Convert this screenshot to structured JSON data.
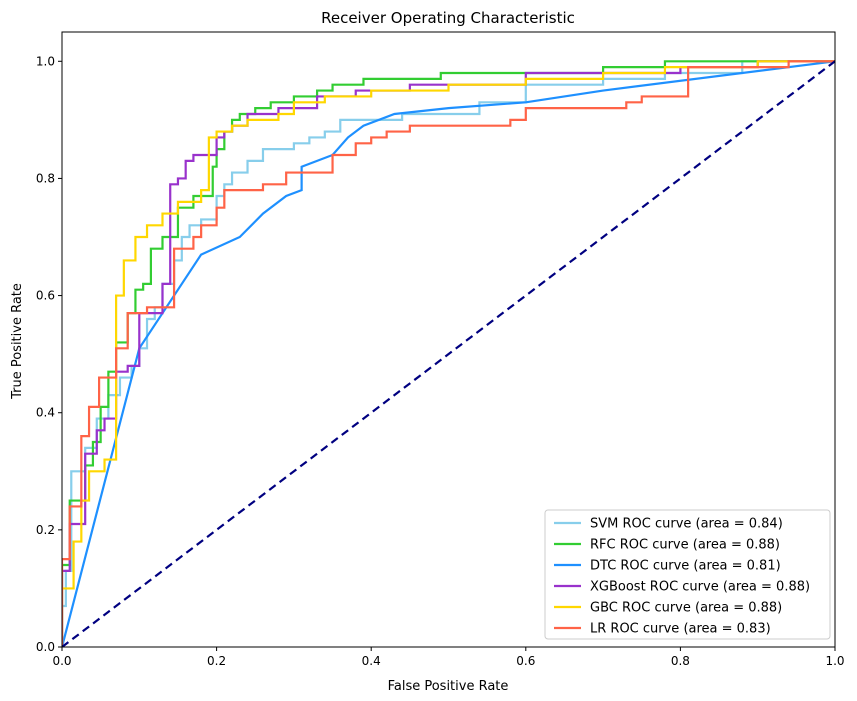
{
  "chart_data": {
    "type": "line",
    "title": "Receiver Operating Characteristic",
    "xlabel": "False Positive Rate",
    "ylabel": "True Positive Rate",
    "xlim": [
      0.0,
      1.0
    ],
    "ylim": [
      0.0,
      1.05
    ],
    "xticks": [
      "0.0",
      "0.2",
      "0.4",
      "0.6",
      "0.8",
      "1.0"
    ],
    "yticks": [
      "0.0",
      "0.2",
      "0.4",
      "0.6",
      "0.8",
      "1.0"
    ],
    "grid": false,
    "legend_position": "lower-right",
    "diagonal": {
      "x": [
        0,
        1
      ],
      "y": [
        0,
        1
      ],
      "color": "#000080",
      "style": "dashed"
    },
    "series": [
      {
        "name": "SVM ROC curve (area = 0.84)",
        "color": "#87ceeb",
        "x": [
          0,
          0,
          0.005,
          0.005,
          0.012,
          0.012,
          0.03,
          0.03,
          0.045,
          0.045,
          0.06,
          0.06,
          0.075,
          0.075,
          0.09,
          0.09,
          0.1,
          0.1,
          0.11,
          0.11,
          0.12,
          0.12,
          0.13,
          0.13,
          0.145,
          0.145,
          0.155,
          0.155,
          0.165,
          0.165,
          0.18,
          0.18,
          0.2,
          0.2,
          0.21,
          0.21,
          0.22,
          0.22,
          0.24,
          0.24,
          0.26,
          0.26,
          0.3,
          0.3,
          0.32,
          0.32,
          0.34,
          0.34,
          0.36,
          0.36,
          0.44,
          0.44,
          0.54,
          0.54,
          0.6,
          0.6,
          0.7,
          0.7,
          0.78,
          0.78,
          0.88,
          0.88,
          1.0
        ],
        "y": [
          0,
          0.07,
          0.07,
          0.13,
          0.13,
          0.3,
          0.3,
          0.34,
          0.34,
          0.39,
          0.39,
          0.43,
          0.43,
          0.46,
          0.46,
          0.48,
          0.48,
          0.51,
          0.51,
          0.56,
          0.56,
          0.58,
          0.58,
          0.62,
          0.62,
          0.66,
          0.66,
          0.7,
          0.7,
          0.72,
          0.72,
          0.73,
          0.73,
          0.77,
          0.77,
          0.79,
          0.79,
          0.81,
          0.81,
          0.83,
          0.83,
          0.85,
          0.85,
          0.86,
          0.86,
          0.87,
          0.87,
          0.88,
          0.88,
          0.9,
          0.9,
          0.91,
          0.91,
          0.93,
          0.93,
          0.96,
          0.96,
          0.97,
          0.97,
          0.98,
          0.98,
          1.0,
          1.0
        ]
      },
      {
        "name": "RFC ROC curve (area = 0.88)",
        "color": "#32cd32",
        "x": [
          0,
          0,
          0.01,
          0.01,
          0.03,
          0.03,
          0.04,
          0.04,
          0.05,
          0.05,
          0.06,
          0.06,
          0.07,
          0.07,
          0.085,
          0.085,
          0.095,
          0.095,
          0.105,
          0.105,
          0.115,
          0.115,
          0.13,
          0.13,
          0.15,
          0.15,
          0.17,
          0.17,
          0.195,
          0.195,
          0.2,
          0.2,
          0.21,
          0.21,
          0.22,
          0.22,
          0.23,
          0.23,
          0.25,
          0.25,
          0.27,
          0.27,
          0.3,
          0.3,
          0.33,
          0.33,
          0.35,
          0.35,
          0.39,
          0.39,
          0.49,
          0.49,
          0.6,
          0.6,
          0.7,
          0.7,
          0.78,
          0.78,
          0.88,
          0.88,
          1.0
        ],
        "y": [
          0,
          0.14,
          0.14,
          0.25,
          0.25,
          0.31,
          0.31,
          0.35,
          0.35,
          0.41,
          0.41,
          0.47,
          0.47,
          0.52,
          0.52,
          0.57,
          0.57,
          0.61,
          0.61,
          0.62,
          0.62,
          0.68,
          0.68,
          0.7,
          0.7,
          0.75,
          0.75,
          0.77,
          0.77,
          0.82,
          0.82,
          0.85,
          0.85,
          0.88,
          0.88,
          0.9,
          0.9,
          0.91,
          0.91,
          0.92,
          0.92,
          0.93,
          0.93,
          0.94,
          0.94,
          0.95,
          0.95,
          0.96,
          0.96,
          0.97,
          0.97,
          0.98,
          0.98,
          0.98,
          0.98,
          0.99,
          0.99,
          1.0,
          1.0,
          1.0,
          1.0
        ]
      },
      {
        "name": "DTC ROC curve (area = 0.81)",
        "color": "#1e90ff",
        "x": [
          0,
          0.1,
          0.14,
          0.18,
          0.23,
          0.26,
          0.29,
          0.31,
          0.31,
          0.35,
          0.37,
          0.39,
          0.43,
          0.5,
          0.6,
          0.7,
          1.0
        ],
        "y": [
          0,
          0.51,
          0.59,
          0.67,
          0.7,
          0.74,
          0.77,
          0.78,
          0.82,
          0.84,
          0.87,
          0.89,
          0.91,
          0.92,
          0.93,
          0.95,
          1.0
        ]
      },
      {
        "name": "XGBoost ROC curve (area = 0.88)",
        "color": "#9932cc",
        "x": [
          0,
          0,
          0.01,
          0.01,
          0.03,
          0.03,
          0.045,
          0.045,
          0.055,
          0.055,
          0.07,
          0.07,
          0.085,
          0.085,
          0.1,
          0.1,
          0.13,
          0.13,
          0.14,
          0.14,
          0.15,
          0.15,
          0.16,
          0.16,
          0.17,
          0.17,
          0.2,
          0.2,
          0.21,
          0.21,
          0.22,
          0.22,
          0.24,
          0.24,
          0.28,
          0.28,
          0.33,
          0.33,
          0.38,
          0.38,
          0.45,
          0.45,
          0.6,
          0.6,
          0.7,
          0.7,
          0.8,
          0.8,
          0.9,
          0.9,
          1.0
        ],
        "y": [
          0,
          0.13,
          0.13,
          0.21,
          0.21,
          0.33,
          0.33,
          0.37,
          0.37,
          0.39,
          0.39,
          0.47,
          0.47,
          0.48,
          0.48,
          0.57,
          0.57,
          0.62,
          0.62,
          0.79,
          0.79,
          0.8,
          0.8,
          0.83,
          0.83,
          0.84,
          0.84,
          0.87,
          0.87,
          0.88,
          0.88,
          0.89,
          0.89,
          0.91,
          0.91,
          0.92,
          0.92,
          0.94,
          0.94,
          0.95,
          0.95,
          0.96,
          0.96,
          0.98,
          0.98,
          0.98,
          0.98,
          0.99,
          0.99,
          1.0,
          1.0
        ]
      },
      {
        "name": "GBC ROC curve (area = 0.88)",
        "color": "#ffd700",
        "x": [
          0,
          0,
          0.015,
          0.015,
          0.025,
          0.025,
          0.035,
          0.035,
          0.055,
          0.055,
          0.07,
          0.07,
          0.08,
          0.08,
          0.095,
          0.095,
          0.11,
          0.11,
          0.13,
          0.13,
          0.15,
          0.15,
          0.18,
          0.18,
          0.19,
          0.19,
          0.2,
          0.2,
          0.22,
          0.22,
          0.24,
          0.24,
          0.28,
          0.28,
          0.3,
          0.3,
          0.34,
          0.34,
          0.4,
          0.4,
          0.5,
          0.5,
          0.6,
          0.6,
          0.7,
          0.7,
          0.78,
          0.78,
          0.9,
          0.9,
          1.0
        ],
        "y": [
          0,
          0.1,
          0.1,
          0.18,
          0.18,
          0.25,
          0.25,
          0.3,
          0.3,
          0.32,
          0.32,
          0.6,
          0.6,
          0.66,
          0.66,
          0.7,
          0.7,
          0.72,
          0.72,
          0.74,
          0.74,
          0.76,
          0.76,
          0.78,
          0.78,
          0.87,
          0.87,
          0.88,
          0.88,
          0.89,
          0.89,
          0.9,
          0.9,
          0.91,
          0.91,
          0.93,
          0.93,
          0.94,
          0.94,
          0.95,
          0.95,
          0.96,
          0.96,
          0.97,
          0.97,
          0.98,
          0.98,
          0.99,
          0.99,
          1.0,
          1.0
        ]
      },
      {
        "name": "LR ROC curve (area = 0.83)",
        "color": "#ff6347",
        "x": [
          0,
          0,
          0.01,
          0.01,
          0.025,
          0.025,
          0.035,
          0.035,
          0.048,
          0.048,
          0.07,
          0.07,
          0.085,
          0.085,
          0.11,
          0.11,
          0.145,
          0.145,
          0.17,
          0.17,
          0.18,
          0.18,
          0.2,
          0.2,
          0.21,
          0.21,
          0.26,
          0.26,
          0.29,
          0.29,
          0.35,
          0.35,
          0.38,
          0.38,
          0.4,
          0.4,
          0.42,
          0.42,
          0.45,
          0.45,
          0.58,
          0.58,
          0.6,
          0.6,
          0.73,
          0.73,
          0.75,
          0.75,
          0.81,
          0.81,
          0.94,
          0.94,
          1.0
        ],
        "y": [
          0,
          0.15,
          0.15,
          0.24,
          0.24,
          0.36,
          0.36,
          0.41,
          0.41,
          0.46,
          0.46,
          0.51,
          0.51,
          0.57,
          0.57,
          0.58,
          0.58,
          0.68,
          0.68,
          0.7,
          0.7,
          0.72,
          0.72,
          0.75,
          0.75,
          0.78,
          0.78,
          0.79,
          0.79,
          0.81,
          0.81,
          0.84,
          0.84,
          0.86,
          0.86,
          0.87,
          0.87,
          0.88,
          0.88,
          0.89,
          0.89,
          0.9,
          0.9,
          0.92,
          0.92,
          0.93,
          0.93,
          0.94,
          0.94,
          0.99,
          0.99,
          1.0,
          1.0
        ]
      }
    ]
  }
}
